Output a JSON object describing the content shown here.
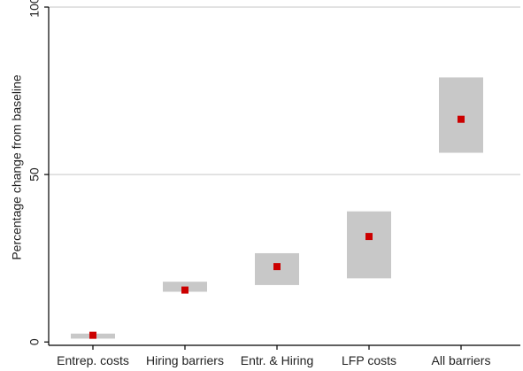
{
  "chart_data": {
    "type": "range-bar with point estimates",
    "xlabel": "",
    "ylabel": "Percentage change from baseline",
    "ylim": [
      -1,
      100
    ],
    "yticks": [
      0,
      50,
      100
    ],
    "grid": "horizontal, at y ticks",
    "legend": "none",
    "categories": [
      "Entrep. costs",
      "Hiring barriers",
      "Entr. & Hiring",
      "LFP costs",
      "All barriers"
    ],
    "points": [
      2,
      15.5,
      22.5,
      31.5,
      66.5
    ],
    "ranges": [
      [
        1,
        2.5
      ],
      [
        15,
        18
      ],
      [
        17,
        26.5
      ],
      [
        19,
        39
      ],
      [
        56.5,
        79
      ]
    ],
    "colors": {
      "range": "#c8c8c8",
      "point": "#cc0000",
      "grid": "#d9d9d9",
      "axis": "#000000"
    }
  }
}
